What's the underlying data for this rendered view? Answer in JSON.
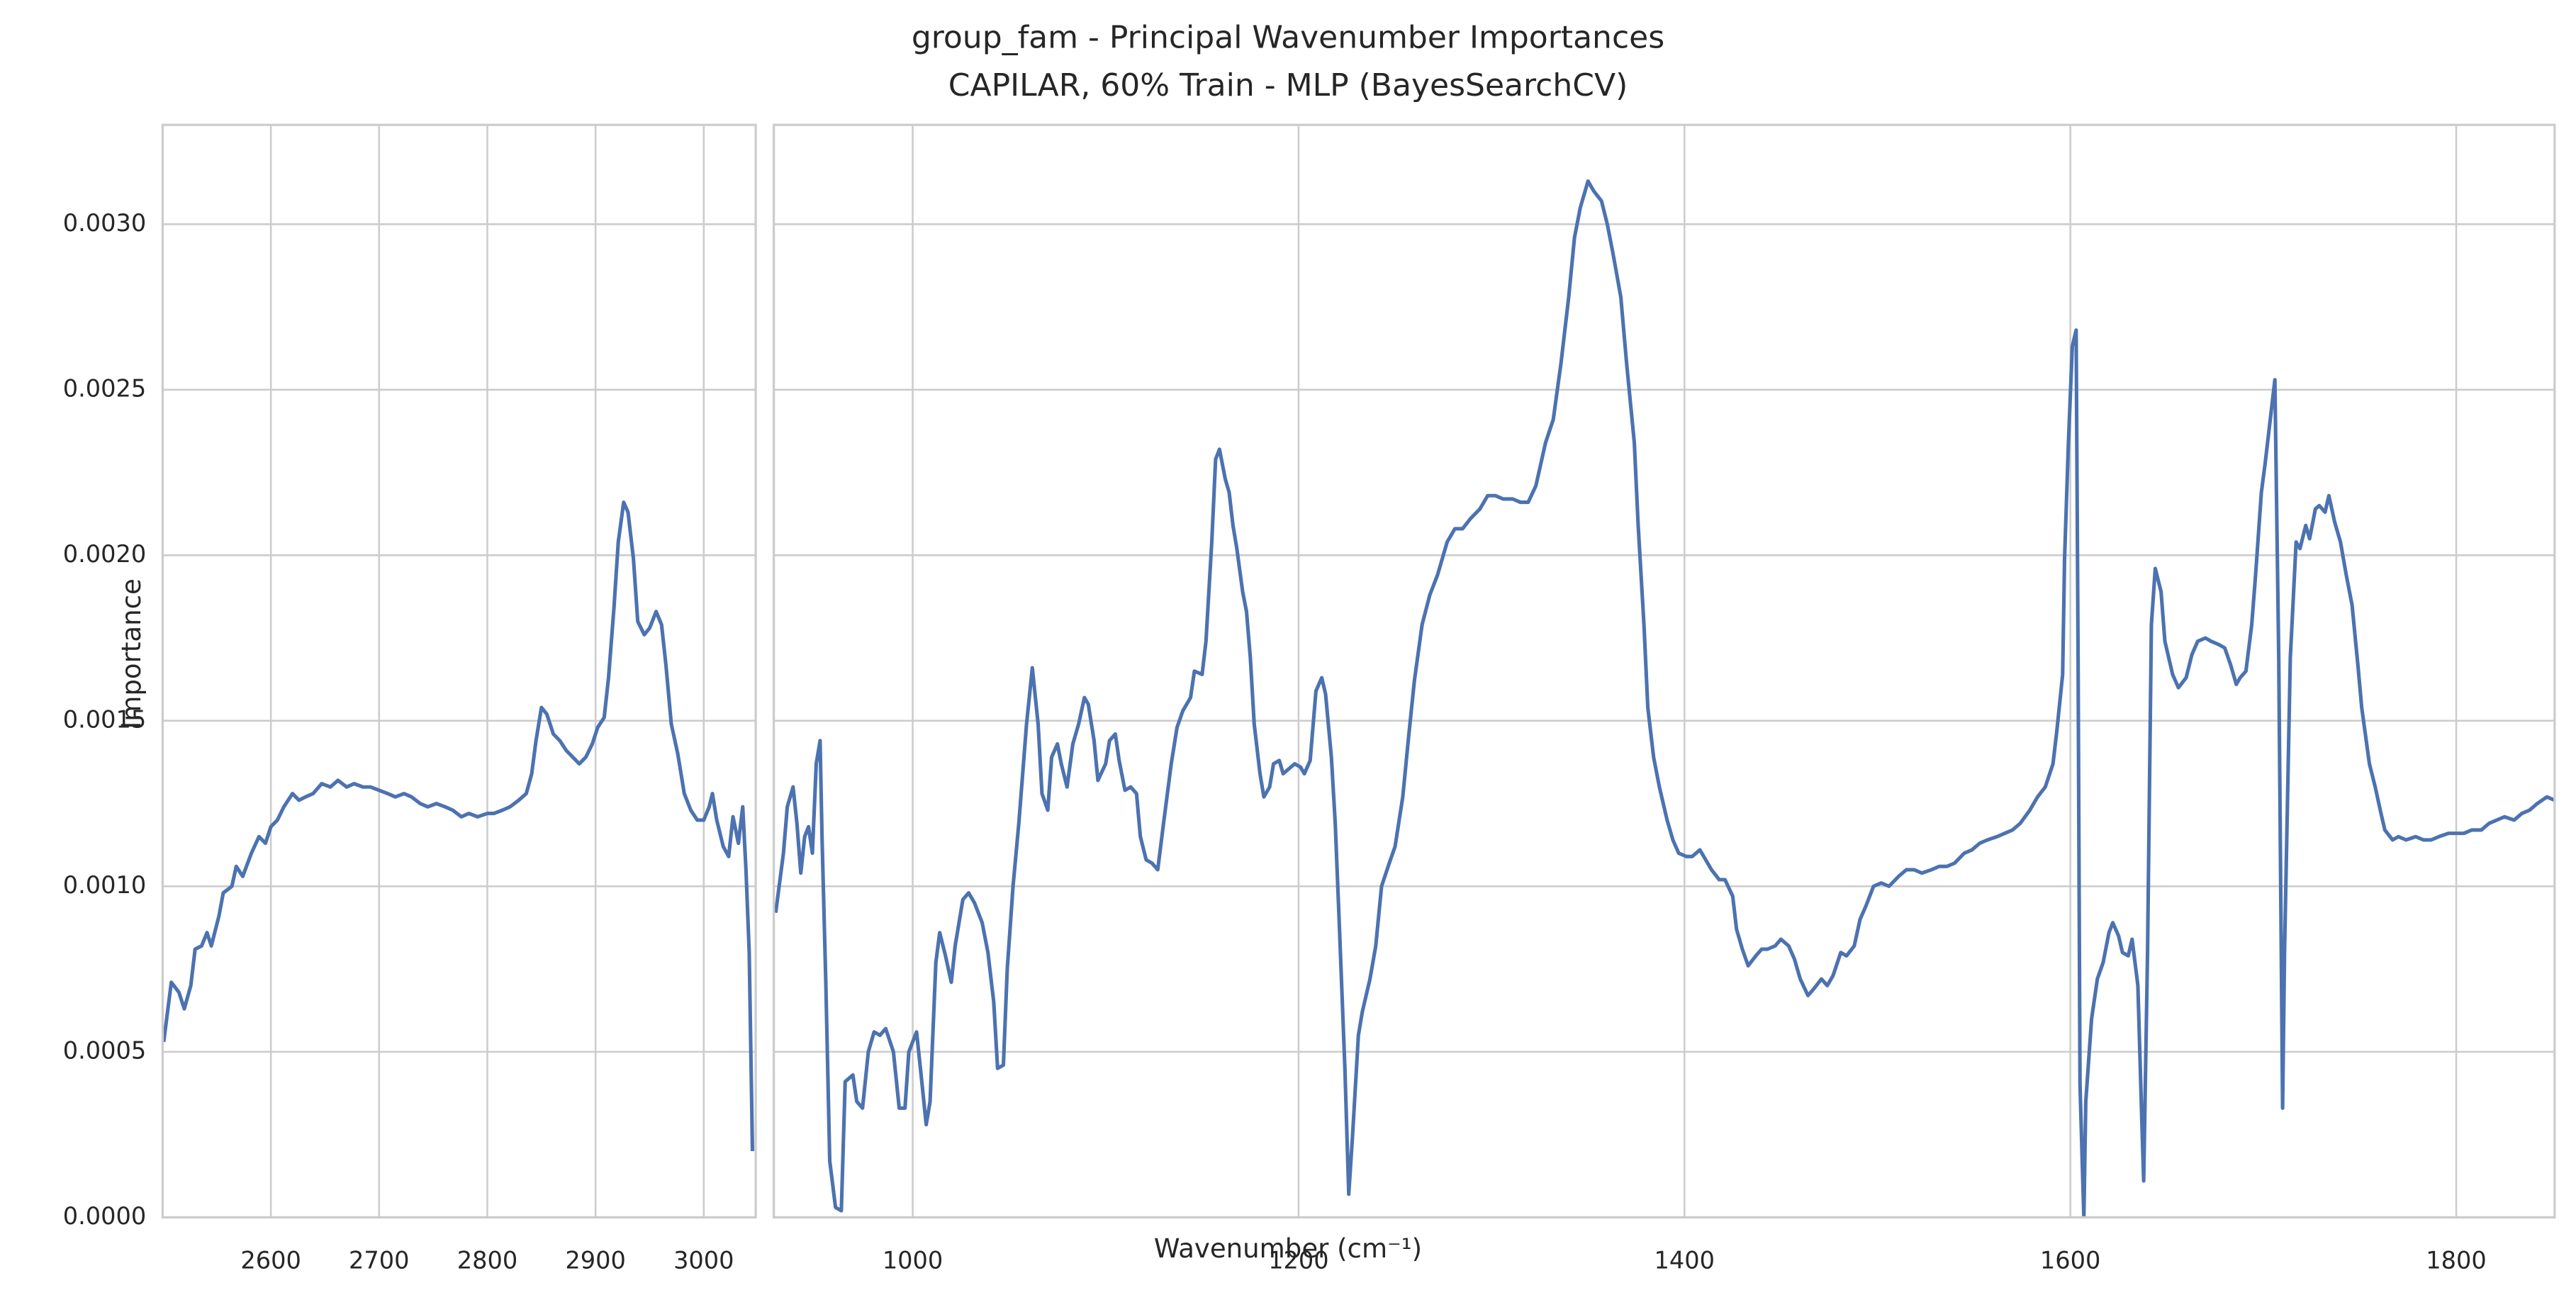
{
  "chart_data": [
    {
      "type": "line",
      "title": "group_fam - Principal Wavenumber Importances",
      "subtitle": "CAPILAR, 60% Train - MLP (BayesSearchCV)",
      "xlabel": "Wavenumber (cm⁻¹)",
      "ylabel": "Importance",
      "color": "#4c72b0",
      "grid": true,
      "xlim": [
        2500,
        3048
      ],
      "xticks": [
        2600,
        2700,
        2800,
        2900,
        3000
      ],
      "ylim": [
        0,
        0.0033
      ],
      "yticks": [
        {
          "value": 0,
          "label": "0.0000"
        },
        {
          "value": 0.0005,
          "label": "0.0005"
        },
        {
          "value": 0.001,
          "label": "0.0010"
        },
        {
          "value": 0.0015,
          "label": "0.0015"
        },
        {
          "value": 0.002,
          "label": "0.0020"
        },
        {
          "value": 0.0025,
          "label": "0.0025"
        },
        {
          "value": 0.003,
          "label": "0.0030"
        }
      ],
      "x": [
        2501,
        2508,
        2515,
        2520,
        2526,
        2530,
        2536,
        2541,
        2545,
        2552,
        2556,
        2564,
        2568,
        2574,
        2582,
        2589,
        2595,
        2600,
        2606,
        2612,
        2620,
        2626,
        2632,
        2639,
        2647,
        2655,
        2662,
        2670,
        2677,
        2685,
        2692,
        2700,
        2708,
        2715,
        2723,
        2730,
        2738,
        2745,
        2753,
        2761,
        2768,
        2776,
        2783,
        2791,
        2800,
        2806,
        2814,
        2821,
        2829,
        2836,
        2841,
        2845,
        2850,
        2855,
        2861,
        2867,
        2873,
        2879,
        2885,
        2891,
        2897,
        2902,
        2908,
        2912,
        2917,
        2921,
        2926,
        2930,
        2935,
        2939,
        2945,
        2950,
        2956,
        2961,
        2965,
        2970,
        2976,
        2982,
        2988,
        2994,
        3000,
        3005,
        3008,
        3012,
        3018,
        3023,
        3027,
        3032,
        3036,
        3039,
        3042,
        3045
      ],
      "values": [
        0.00053,
        0.00071,
        0.00068,
        0.00063,
        0.0007,
        0.00081,
        0.00082,
        0.00086,
        0.00082,
        0.00091,
        0.00098,
        0.001,
        0.00106,
        0.00103,
        0.0011,
        0.00115,
        0.00113,
        0.00118,
        0.0012,
        0.00124,
        0.00128,
        0.00126,
        0.00127,
        0.00128,
        0.00131,
        0.0013,
        0.00132,
        0.0013,
        0.00131,
        0.0013,
        0.0013,
        0.00129,
        0.00128,
        0.00127,
        0.00128,
        0.00127,
        0.00125,
        0.00124,
        0.00125,
        0.00124,
        0.00123,
        0.00121,
        0.00122,
        0.00121,
        0.00122,
        0.00122,
        0.00123,
        0.00124,
        0.00126,
        0.00128,
        0.00134,
        0.00144,
        0.00154,
        0.00152,
        0.00146,
        0.00144,
        0.00141,
        0.00139,
        0.00137,
        0.00139,
        0.00143,
        0.00148,
        0.00151,
        0.00163,
        0.00184,
        0.00204,
        0.00216,
        0.00213,
        0.00199,
        0.0018,
        0.00176,
        0.00178,
        0.00183,
        0.00179,
        0.00167,
        0.00149,
        0.0014,
        0.00128,
        0.00123,
        0.0012,
        0.0012,
        0.00124,
        0.00128,
        0.0012,
        0.00112,
        0.00109,
        0.00121,
        0.00113,
        0.00124,
        0.00105,
        0.0008,
        0.0002
      ]
    },
    {
      "type": "line",
      "color": "#4c72b0",
      "grid": true,
      "xlim": [
        928,
        1851
      ],
      "xticks": [
        1000,
        1200,
        1400,
        1600,
        1800
      ],
      "ylim": [
        0,
        0.0033
      ],
      "yticks": [
        0,
        0.0005,
        0.001,
        0.0015,
        0.002,
        0.0025,
        0.003
      ],
      "x": [
        929,
        933,
        935,
        938,
        940,
        942,
        944,
        946,
        948,
        950,
        952,
        953,
        955,
        957,
        960,
        963,
        965,
        969,
        971,
        974,
        977,
        980,
        983,
        986,
        990,
        993,
        996,
        998,
        1002,
        1004,
        1007,
        1009,
        1012,
        1014,
        1017,
        1020,
        1022,
        1026,
        1029,
        1032,
        1036,
        1039,
        1042,
        1044,
        1047,
        1049,
        1052,
        1055,
        1059,
        1062,
        1065,
        1067,
        1070,
        1072,
        1075,
        1077,
        1080,
        1083,
        1086,
        1089,
        1091,
        1094,
        1096,
        1100,
        1102,
        1105,
        1107,
        1110,
        1113,
        1116,
        1118,
        1121,
        1124,
        1127,
        1130,
        1134,
        1137,
        1140,
        1144,
        1146,
        1150,
        1152,
        1155,
        1157,
        1159,
        1162,
        1164,
        1166,
        1168,
        1171,
        1173,
        1175,
        1177,
        1180,
        1182,
        1185,
        1187,
        1190,
        1192,
        1196,
        1198,
        1201,
        1203,
        1206,
        1209,
        1212,
        1214,
        1217,
        1219,
        1221,
        1224,
        1226,
        1228,
        1231,
        1233,
        1237,
        1240,
        1243,
        1247,
        1250,
        1254,
        1257,
        1260,
        1264,
        1268,
        1272,
        1277,
        1281,
        1285,
        1289,
        1294,
        1298,
        1302,
        1306,
        1311,
        1315,
        1319,
        1323,
        1328,
        1332,
        1336,
        1340,
        1343,
        1346,
        1350,
        1353,
        1357,
        1360,
        1363,
        1367,
        1370,
        1374,
        1376,
        1379,
        1381,
        1384,
        1387,
        1391,
        1394,
        1397,
        1401,
        1404,
        1408,
        1411,
        1414,
        1418,
        1421,
        1425,
        1427,
        1430,
        1433,
        1437,
        1440,
        1443,
        1447,
        1450,
        1454,
        1457,
        1460,
        1464,
        1467,
        1471,
        1474,
        1477,
        1481,
        1484,
        1488,
        1491,
        1494,
        1498,
        1502,
        1506,
        1511,
        1515,
        1519,
        1523,
        1528,
        1532,
        1536,
        1540,
        1545,
        1549,
        1553,
        1557,
        1562,
        1566,
        1570,
        1574,
        1579,
        1583,
        1587,
        1591,
        1593,
        1596,
        1597,
        1599,
        1601,
        1603,
        1604,
        1605,
        1607,
        1608,
        1611,
        1614,
        1617,
        1620,
        1622,
        1625,
        1627,
        1630,
        1632,
        1635,
        1637,
        1638,
        1640,
        1642,
        1644,
        1647,
        1649,
        1653,
        1656,
        1660,
        1663,
        1666,
        1670,
        1673,
        1677,
        1680,
        1683,
        1686,
        1688,
        1691,
        1694,
        1696,
        1699,
        1701,
        1704,
        1706,
        1708,
        1710,
        1711,
        1714,
        1717,
        1719,
        1722,
        1724,
        1727,
        1729,
        1732,
        1734,
        1737,
        1740,
        1743,
        1746,
        1749,
        1751,
        1755,
        1758,
        1761,
        1763,
        1767,
        1770,
        1774,
        1779,
        1783,
        1787,
        1791,
        1796,
        1800,
        1804,
        1808,
        1813,
        1817,
        1821,
        1825,
        1830,
        1834,
        1838,
        1842,
        1847,
        1851
      ],
      "values": [
        0.00092,
        0.0011,
        0.00124,
        0.0013,
        0.00119,
        0.00104,
        0.00115,
        0.00118,
        0.0011,
        0.00137,
        0.00144,
        0.00115,
        0.0007,
        0.00017,
        3e-05,
        2e-05,
        0.00041,
        0.00043,
        0.00035,
        0.00033,
        0.0005,
        0.00056,
        0.00055,
        0.00057,
        0.0005,
        0.00033,
        0.00033,
        0.0005,
        0.00056,
        0.00045,
        0.00028,
        0.00035,
        0.00077,
        0.00086,
        0.00079,
        0.00071,
        0.00082,
        0.00096,
        0.00098,
        0.00095,
        0.00089,
        0.0008,
        0.00065,
        0.00045,
        0.00046,
        0.00075,
        0.001,
        0.00119,
        0.00149,
        0.00166,
        0.00149,
        0.00128,
        0.00123,
        0.00139,
        0.00143,
        0.00137,
        0.0013,
        0.00143,
        0.00149,
        0.00157,
        0.00155,
        0.00144,
        0.00132,
        0.00137,
        0.00144,
        0.00146,
        0.00138,
        0.00129,
        0.0013,
        0.00128,
        0.00115,
        0.00108,
        0.00107,
        0.00105,
        0.00119,
        0.00137,
        0.00148,
        0.00153,
        0.00157,
        0.00165,
        0.00164,
        0.00174,
        0.00204,
        0.00229,
        0.00232,
        0.00223,
        0.00219,
        0.00209,
        0.00202,
        0.00189,
        0.00183,
        0.00169,
        0.00149,
        0.00134,
        0.00127,
        0.0013,
        0.00137,
        0.00138,
        0.00134,
        0.00136,
        0.00137,
        0.00136,
        0.00134,
        0.00138,
        0.00159,
        0.00163,
        0.00158,
        0.00139,
        0.00119,
        0.0009,
        0.00045,
        7e-05,
        0.00025,
        0.00055,
        0.00062,
        0.00072,
        0.00082,
        0.001,
        0.00107,
        0.00112,
        0.00127,
        0.00145,
        0.00162,
        0.00179,
        0.00188,
        0.00194,
        0.00204,
        0.00208,
        0.00208,
        0.00211,
        0.00214,
        0.00218,
        0.00218,
        0.00217,
        0.00217,
        0.00216,
        0.00216,
        0.00221,
        0.00234,
        0.00241,
        0.00258,
        0.00278,
        0.00296,
        0.00305,
        0.00313,
        0.0031,
        0.00307,
        0.003,
        0.00291,
        0.00278,
        0.00258,
        0.00234,
        0.00209,
        0.00179,
        0.00154,
        0.00139,
        0.0013,
        0.0012,
        0.00114,
        0.0011,
        0.00109,
        0.00109,
        0.00111,
        0.00108,
        0.00105,
        0.00102,
        0.00102,
        0.00097,
        0.00087,
        0.00081,
        0.00076,
        0.00079,
        0.00081,
        0.00081,
        0.00082,
        0.00084,
        0.00082,
        0.00078,
        0.00072,
        0.00067,
        0.00069,
        0.00072,
        0.0007,
        0.00073,
        0.0008,
        0.00079,
        0.00082,
        0.0009,
        0.00094,
        0.001,
        0.00101,
        0.001,
        0.00103,
        0.00105,
        0.00105,
        0.00104,
        0.00105,
        0.00106,
        0.00106,
        0.00107,
        0.0011,
        0.00111,
        0.00113,
        0.00114,
        0.00115,
        0.00116,
        0.00117,
        0.00119,
        0.00123,
        0.00127,
        0.0013,
        0.00137,
        0.00147,
        0.00164,
        0.00199,
        0.00234,
        0.00263,
        0.00268,
        0.00169,
        0.0004,
        0.0,
        0.00035,
        0.0006,
        0.00072,
        0.00077,
        0.00086,
        0.00089,
        0.00085,
        0.0008,
        0.00079,
        0.00084,
        0.0007,
        0.0003,
        0.00011,
        0.0008,
        0.00179,
        0.00196,
        0.00189,
        0.00174,
        0.00164,
        0.0016,
        0.00163,
        0.0017,
        0.00174,
        0.00175,
        0.00174,
        0.00173,
        0.00172,
        0.00167,
        0.00161,
        0.00163,
        0.00165,
        0.00179,
        0.00194,
        0.00219,
        0.00228,
        0.00243,
        0.00253,
        0.00169,
        0.00033,
        0.0008,
        0.00169,
        0.00204,
        0.00202,
        0.00209,
        0.00205,
        0.00214,
        0.00215,
        0.00213,
        0.00218,
        0.0021,
        0.00204,
        0.00194,
        0.00185,
        0.00167,
        0.00154,
        0.00137,
        0.0013,
        0.00122,
        0.00117,
        0.00114,
        0.00115,
        0.00114,
        0.00115,
        0.00114,
        0.00114,
        0.00115,
        0.00116,
        0.00116,
        0.00116,
        0.00117,
        0.00117,
        0.00119,
        0.0012,
        0.00121,
        0.0012,
        0.00122,
        0.00123,
        0.00125,
        0.00127,
        0.00126
      ]
    }
  ]
}
